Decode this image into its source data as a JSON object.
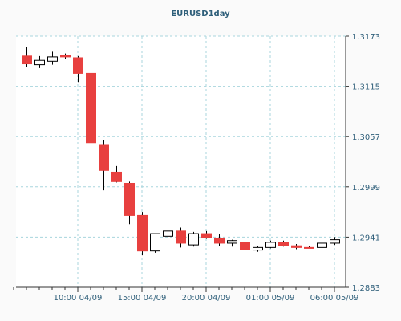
{
  "chart_data": {
    "type": "candlestick",
    "title": "EURUSD1day",
    "ylim": [
      1.2883,
      1.3173
    ],
    "y_ticks": [
      "1.3173",
      "1.3115",
      "1.3057",
      "1.2999",
      "1.2941",
      "1.2883"
    ],
    "x_ticks": [
      "10:00 04/09",
      "15:00 04/09",
      "20:00 04/09",
      "01:00 05/09",
      "06:00 05/09"
    ],
    "grid": true,
    "colors": {
      "up": "#ffffff",
      "down": "#e8403f",
      "wick": "#000000",
      "grid": "#a8d5dd"
    },
    "candles": [
      {
        "open": 1.315,
        "high": 1.316,
        "low": 1.3137,
        "close": 1.3141
      },
      {
        "open": 1.314,
        "high": 1.315,
        "low": 1.3136,
        "close": 1.3145
      },
      {
        "open": 1.3144,
        "high": 1.3155,
        "low": 1.314,
        "close": 1.3149
      },
      {
        "open": 1.3151,
        "high": 1.3153,
        "low": 1.3147,
        "close": 1.3149
      },
      {
        "open": 1.3148,
        "high": 1.315,
        "low": 1.312,
        "close": 1.313
      },
      {
        "open": 1.313,
        "high": 1.314,
        "low": 1.3035,
        "close": 1.305
      },
      {
        "open": 1.3047,
        "high": 1.3053,
        "low": 1.2995,
        "close": 1.3018
      },
      {
        "open": 1.3016,
        "high": 1.3023,
        "low": 1.3004,
        "close": 1.3005
      },
      {
        "open": 1.3003,
        "high": 1.3005,
        "low": 1.2956,
        "close": 1.2966
      },
      {
        "open": 1.2966,
        "high": 1.297,
        "low": 1.292,
        "close": 1.2925
      },
      {
        "open": 1.2925,
        "high": 1.2945,
        "low": 1.2923,
        "close": 1.2945
      },
      {
        "open": 1.2942,
        "high": 1.2952,
        "low": 1.294,
        "close": 1.2948
      },
      {
        "open": 1.2948,
        "high": 1.2952,
        "low": 1.2929,
        "close": 1.2934
      },
      {
        "open": 1.2932,
        "high": 1.2947,
        "low": 1.293,
        "close": 1.2945
      },
      {
        "open": 1.2945,
        "high": 1.2948,
        "low": 1.2939,
        "close": 1.294
      },
      {
        "open": 1.294,
        "high": 1.2945,
        "low": 1.2931,
        "close": 1.2934
      },
      {
        "open": 1.2934,
        "high": 1.2938,
        "low": 1.293,
        "close": 1.2937
      },
      {
        "open": 1.2935,
        "high": 1.2935,
        "low": 1.2922,
        "close": 1.2927
      },
      {
        "open": 1.2926,
        "high": 1.2931,
        "low": 1.2924,
        "close": 1.2929
      },
      {
        "open": 1.2929,
        "high": 1.2937,
        "low": 1.2928,
        "close": 1.2935
      },
      {
        "open": 1.2935,
        "high": 1.2937,
        "low": 1.293,
        "close": 1.2931
      },
      {
        "open": 1.2931,
        "high": 1.2933,
        "low": 1.2927,
        "close": 1.2929
      },
      {
        "open": 1.2929,
        "high": 1.2931,
        "low": 1.2928,
        "close": 1.2928
      },
      {
        "open": 1.2929,
        "high": 1.2936,
        "low": 1.2928,
        "close": 1.2934
      },
      {
        "open": 1.2934,
        "high": 1.2941,
        "low": 1.2932,
        "close": 1.2938
      }
    ]
  }
}
